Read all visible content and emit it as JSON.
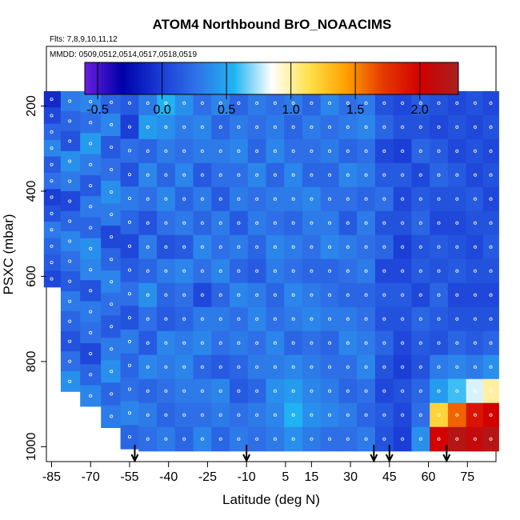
{
  "chart_data": {
    "type": "heatmap",
    "title": "ATOM4 Northbound BrO_NOAACIMS",
    "flights_label": "Flts: 7,8,9,10,11,12",
    "mmdd_label": "MMDD: 0509,0512,0514,0517,0518,0519",
    "xlabel": "Latitude (deg N)",
    "ylabel": "PSXC (mbar)",
    "xlim": [
      -87,
      86
    ],
    "ylim": [
      1035,
      60
    ],
    "x_ticks": [
      -85,
      -70,
      -55,
      -40,
      -25,
      -10,
      5,
      15,
      30,
      45,
      60,
      75
    ],
    "y_ticks": [
      200,
      400,
      600,
      800,
      1000
    ],
    "colorbar": {
      "ticks": [
        -0.5,
        0.0,
        0.5,
        1.0,
        1.5,
        2.0
      ],
      "range": [
        -0.6,
        2.3
      ],
      "colors": [
        "#6a1ee0",
        "#0000a8",
        "#1a3ad6",
        "#2f73e8",
        "#1fb4f2",
        "#ffffff",
        "#ffe14a",
        "#ffa000",
        "#e53800",
        "#d00000",
        "#a82020"
      ]
    },
    "arrows_lat": [
      -53,
      -10,
      39,
      45,
      67
    ],
    "profiles": [
      {
        "lat": -85,
        "bottom": 625,
        "values": [
          -0.1,
          0.05,
          0.2,
          0.35,
          0.15,
          0.25,
          0.0,
          0.1,
          0.3,
          0.2,
          0.15,
          0.05
        ]
      },
      {
        "lat": -78,
        "bottom": 870,
        "values": [
          0.3,
          0.2,
          0.1,
          0.4,
          0.3,
          0.05,
          0.2,
          0.35,
          0.25,
          0.15,
          0.3,
          0.2,
          0.1,
          0.25,
          0.4
        ]
      },
      {
        "lat": -70,
        "bottom": 905,
        "values": [
          0.35,
          0.25,
          0.45,
          0.3,
          0.15,
          0.3,
          0.2,
          0.4,
          0.35,
          0.1,
          0.3,
          0.25,
          0.05,
          0.2,
          0.35
        ]
      },
      {
        "lat": -62,
        "bottom": 955,
        "values": [
          0.2,
          0.35,
          0.15,
          0.25,
          0.4,
          0.3,
          0.05,
          0.2,
          0.35,
          0.25,
          0.15,
          0.3,
          0.4,
          0.2,
          0.3
        ]
      },
      {
        "lat": -55,
        "bottom": 1005,
        "values": [
          0.15,
          0.0,
          0.25,
          0.1,
          0.3,
          0.2,
          0.05,
          0.15,
          0.25,
          0.1,
          0.3,
          0.2,
          0.25,
          0.35,
          0.2
        ]
      },
      {
        "lat": -48,
        "bottom": 1010,
        "values": [
          0.3,
          0.45,
          0.2,
          0.35,
          0.25,
          0.1,
          0.3,
          0.2,
          0.4,
          0.25,
          0.15,
          0.35,
          0.2,
          0.3,
          0.25
        ]
      },
      {
        "lat": -41,
        "bottom": 1010,
        "values": [
          0.55,
          0.4,
          0.3,
          0.2,
          0.35,
          0.25,
          0.1,
          0.3,
          0.2,
          0.15,
          0.35,
          0.3,
          0.25,
          0.2,
          0.3
        ]
      },
      {
        "lat": -34,
        "bottom": 1010,
        "values": [
          0.4,
          0.3,
          0.25,
          0.35,
          0.2,
          0.3,
          0.15,
          0.35,
          0.25,
          0.2,
          0.3,
          0.35,
          0.3,
          0.25,
          0.2
        ]
      },
      {
        "lat": -27,
        "bottom": 1010,
        "values": [
          0.25,
          0.35,
          0.3,
          0.15,
          0.3,
          0.2,
          0.35,
          0.25,
          0.05,
          0.3,
          0.35,
          0.2,
          0.3,
          0.25,
          0.35
        ]
      },
      {
        "lat": -20,
        "bottom": 1010,
        "values": [
          0.35,
          0.2,
          0.3,
          0.25,
          0.15,
          0.3,
          0.25,
          0.35,
          0.2,
          0.3,
          0.25,
          0.15,
          0.35,
          0.3,
          0.2
        ]
      },
      {
        "lat": -13,
        "bottom": 1010,
        "values": [
          0.2,
          0.3,
          0.35,
          0.25,
          0.3,
          0.15,
          0.3,
          0.2,
          0.35,
          0.25,
          0.3,
          0.2,
          0.15,
          0.25,
          0.3
        ]
      },
      {
        "lat": -6,
        "bottom": 1010,
        "values": [
          0.3,
          0.25,
          0.2,
          0.35,
          0.25,
          0.3,
          0.2,
          0.15,
          0.3,
          0.35,
          0.25,
          0.3,
          0.2,
          0.3,
          0.25
        ]
      },
      {
        "lat": 1,
        "bottom": 1010,
        "values": [
          0.25,
          0.3,
          0.35,
          0.2,
          0.3,
          0.25,
          0.35,
          0.3,
          0.2,
          0.25,
          0.35,
          0.3,
          0.4,
          0.35,
          0.3
        ]
      },
      {
        "lat": 8,
        "bottom": 1010,
        "values": [
          0.3,
          0.2,
          0.25,
          0.35,
          0.3,
          0.2,
          0.3,
          0.25,
          0.35,
          0.3,
          0.2,
          0.35,
          0.45,
          0.55,
          0.4
        ]
      },
      {
        "lat": 15,
        "bottom": 1010,
        "values": [
          0.2,
          0.3,
          0.25,
          0.2,
          0.35,
          0.3,
          0.25,
          0.2,
          0.3,
          0.35,
          0.25,
          0.3,
          0.35,
          0.4,
          0.3
        ]
      },
      {
        "lat": 22,
        "bottom": 1010,
        "values": [
          0.35,
          0.25,
          0.3,
          0.2,
          0.25,
          0.3,
          0.35,
          0.2,
          0.25,
          0.3,
          0.2,
          0.25,
          0.3,
          0.35,
          0.25
        ]
      },
      {
        "lat": 29,
        "bottom": 1010,
        "values": [
          0.25,
          0.3,
          0.2,
          0.35,
          0.25,
          0.15,
          0.3,
          0.25,
          0.2,
          0.3,
          0.35,
          0.25,
          0.2,
          0.3,
          0.25
        ]
      },
      {
        "lat": 36,
        "bottom": 1010,
        "values": [
          0.3,
          0.35,
          0.25,
          0.3,
          0.2,
          0.3,
          0.25,
          0.3,
          0.2,
          0.25,
          0.3,
          0.35,
          0.25,
          0.2,
          0.3
        ]
      },
      {
        "lat": 43,
        "bottom": 1010,
        "values": [
          0.1,
          0.2,
          0.05,
          0.15,
          0.25,
          0.1,
          0.2,
          0.05,
          0.15,
          0.1,
          0.2,
          0.1,
          0.05,
          0.15,
          0.1
        ]
      },
      {
        "lat": 50,
        "bottom": 1010,
        "values": [
          0.05,
          0.1,
          0.0,
          0.15,
          0.05,
          0.1,
          0.0,
          0.05,
          0.15,
          0.1,
          0.05,
          0.0,
          0.1,
          0.05,
          0.0
        ]
      },
      {
        "lat": 57,
        "bottom": 1010,
        "values": [
          0.15,
          0.1,
          0.2,
          0.05,
          0.15,
          0.2,
          0.1,
          0.15,
          0.05,
          0.2,
          0.15,
          0.1,
          0.2,
          0.25,
          0.4
        ]
      },
      {
        "lat": 64,
        "bottom": 1010,
        "values": [
          0.1,
          0.05,
          0.15,
          0.2,
          0.1,
          0.05,
          0.15,
          0.1,
          0.2,
          0.15,
          0.1,
          0.3,
          0.45,
          1.2,
          2.0
        ]
      },
      {
        "lat": 71,
        "bottom": 1010,
        "values": [
          0.05,
          0.1,
          0.05,
          0.15,
          0.1,
          0.05,
          0.1,
          0.15,
          0.05,
          0.1,
          0.2,
          0.35,
          0.6,
          1.6,
          2.2
        ]
      },
      {
        "lat": 78,
        "bottom": 1010,
        "values": [
          0.1,
          0.05,
          0.1,
          0.05,
          0.15,
          0.1,
          0.05,
          0.1,
          0.05,
          0.1,
          0.15,
          0.3,
          0.8,
          1.9,
          2.1
        ]
      },
      {
        "lat": 84,
        "bottom": 1010,
        "values": [
          0.05,
          0.1,
          0.05,
          0.1,
          0.05,
          0.1,
          0.15,
          0.1,
          0.05,
          0.1,
          0.2,
          0.4,
          1.0,
          2.0,
          2.2
        ]
      }
    ]
  }
}
